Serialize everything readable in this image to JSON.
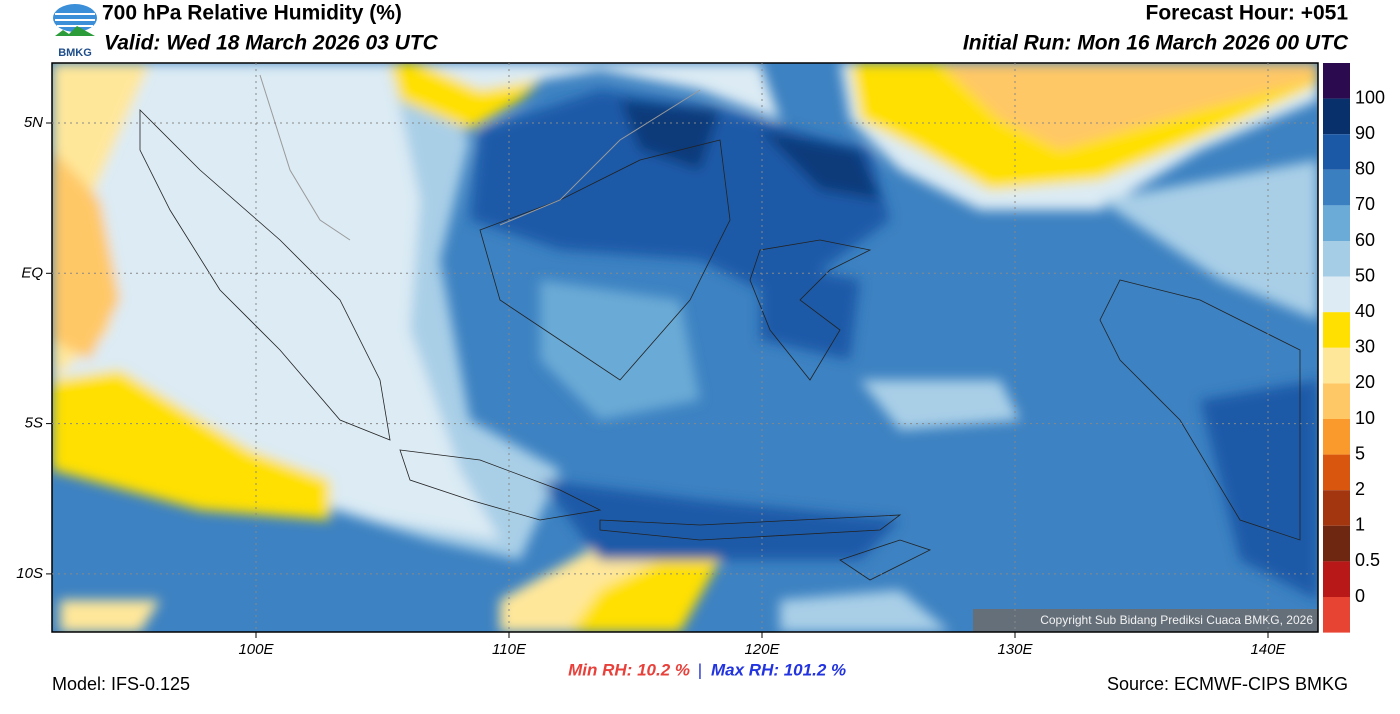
{
  "header": {
    "title": "700 hPa Relative Humidity (%)",
    "valid": "Valid: Wed 18 March 2026 03 UTC",
    "forecast_hour": "Forecast Hour: +051",
    "initial_run": "Initial Run: Mon 16 March 2026 00 UTC",
    "logo": "BMKG"
  },
  "map": {
    "lat_labels": [
      "5N",
      "EQ",
      "5S",
      "10S"
    ],
    "lon_labels": [
      "100E",
      "110E",
      "120E",
      "130E",
      "140E"
    ],
    "copyright": "Copyright Sub Bidang Prediksi Cuaca BMKG, 2026"
  },
  "colorbar": {
    "labels": [
      "100",
      "90",
      "80",
      "70",
      "60",
      "50",
      "40",
      "30",
      "20",
      "10",
      "5",
      "2",
      "1",
      "0.5",
      "0"
    ]
  },
  "footer": {
    "model": "Model: IFS-0.125",
    "min_rh": "Min RH:  10.2 %",
    "separator": "|",
    "max_rh": "Max RH: 101.2 %",
    "source": "Source: ECMWF-CIPS BMKG"
  }
}
